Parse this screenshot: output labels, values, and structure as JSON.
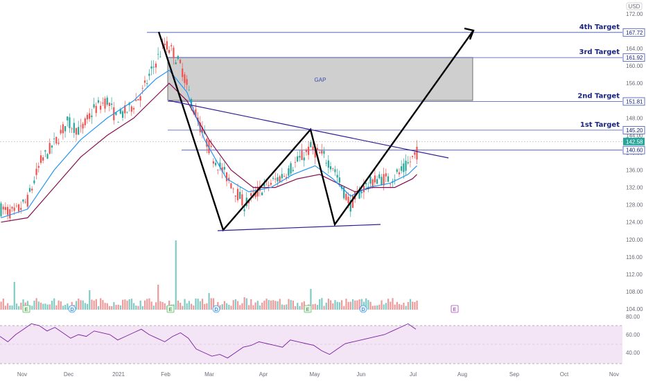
{
  "chart_data": {
    "type": "candlestick",
    "currency": "USD",
    "price_axis": {
      "ticks": [
        172.0,
        168.0,
        164.0,
        160.0,
        156.0,
        152.0,
        148.0,
        144.0,
        140.0,
        136.0,
        132.0,
        128.0,
        124.0,
        120.0,
        116.0,
        112.0,
        108.0,
        104.0
      ],
      "ylim": [
        102,
        174
      ]
    },
    "rsi_axis": {
      "ticks": [
        80.0,
        60.0,
        40.0
      ],
      "ylim": [
        25,
        82
      ]
    },
    "x_labels": [
      "Nov",
      "Dec",
      "2021",
      "Feb",
      "Mar",
      "Apr",
      "May",
      "Jun",
      "Jul",
      "Aug",
      "Sep",
      "Oct",
      "Nov"
    ],
    "price_levels": [
      {
        "value": 167.72,
        "label": "167.72",
        "target": "4th Target"
      },
      {
        "value": 161.92,
        "label": "161.92",
        "target": "3rd Target"
      },
      {
        "value": 151.81,
        "label": "151.81",
        "target": "2nd Target"
      },
      {
        "value": 145.2,
        "label": "145.20",
        "target": "1st Target"
      },
      {
        "value": 140.6,
        "label": "140.60",
        "target": ""
      }
    ],
    "current_price": {
      "value": 142.58,
      "label": "142.58",
      "color": "#26a69a"
    },
    "gap_zone": {
      "label": "GAP",
      "from": 151.81,
      "to": 161.92
    },
    "close_path": [
      [
        0,
        127
      ],
      [
        6,
        126
      ],
      [
        12,
        129
      ],
      [
        18,
        138
      ],
      [
        24,
        142
      ],
      [
        30,
        147
      ],
      [
        36,
        145
      ],
      [
        42,
        150
      ],
      [
        48,
        152
      ],
      [
        52,
        148
      ],
      [
        58,
        150
      ],
      [
        64,
        154
      ],
      [
        70,
        161
      ],
      [
        74,
        165
      ],
      [
        78,
        163
      ],
      [
        82,
        159
      ],
      [
        86,
        152
      ],
      [
        90,
        146
      ],
      [
        96,
        139
      ],
      [
        104,
        133
      ],
      [
        110,
        128
      ],
      [
        116,
        131
      ],
      [
        122,
        133
      ],
      [
        128,
        135
      ],
      [
        134,
        138
      ],
      [
        140,
        141
      ],
      [
        146,
        139
      ],
      [
        150,
        137
      ],
      [
        154,
        132
      ],
      [
        158,
        128
      ],
      [
        164,
        132
      ],
      [
        170,
        134
      ],
      [
        176,
        134
      ],
      [
        182,
        136
      ],
      [
        188,
        140
      ]
    ],
    "ema_fast": [
      [
        0,
        125
      ],
      [
        12,
        127
      ],
      [
        24,
        136
      ],
      [
        36,
        143
      ],
      [
        48,
        148
      ],
      [
        60,
        152
      ],
      [
        70,
        157
      ],
      [
        76,
        159
      ],
      [
        84,
        154
      ],
      [
        92,
        143
      ],
      [
        102,
        134
      ],
      [
        112,
        131
      ],
      [
        122,
        132
      ],
      [
        132,
        135
      ],
      [
        142,
        137
      ],
      [
        150,
        134
      ],
      [
        158,
        130
      ],
      [
        166,
        132
      ],
      [
        176,
        133
      ],
      [
        184,
        135
      ],
      [
        188,
        137
      ]
    ],
    "ema_slow": [
      [
        0,
        124
      ],
      [
        12,
        125
      ],
      [
        24,
        132
      ],
      [
        36,
        139
      ],
      [
        48,
        144
      ],
      [
        60,
        148
      ],
      [
        70,
        153
      ],
      [
        76,
        156
      ],
      [
        84,
        152
      ],
      [
        94,
        143
      ],
      [
        104,
        136
      ],
      [
        114,
        132
      ],
      [
        124,
        132
      ],
      [
        134,
        134
      ],
      [
        144,
        135
      ],
      [
        152,
        133
      ],
      [
        160,
        131
      ],
      [
        168,
        132
      ],
      [
        178,
        132
      ],
      [
        186,
        134
      ],
      [
        188,
        135
      ]
    ],
    "volume_events": [
      {
        "label": "E",
        "kind": "earnings"
      },
      {
        "label": "D",
        "kind": "dividend"
      },
      {
        "label": "E",
        "kind": "earnings"
      },
      {
        "label": "D",
        "kind": "dividend"
      },
      {
        "label": "E",
        "kind": "earnings"
      },
      {
        "label": "D",
        "kind": "dividend"
      },
      {
        "label": "E",
        "kind": "earnings-upcoming"
      }
    ],
    "rsi_values": [
      58,
      52,
      60,
      66,
      72,
      70,
      64,
      68,
      62,
      56,
      60,
      58,
      64,
      62,
      60,
      54,
      58,
      62,
      66,
      60,
      56,
      52,
      58,
      62,
      56,
      44,
      40,
      36,
      38,
      34,
      40,
      46,
      48,
      52,
      50,
      48,
      46,
      54,
      52,
      50,
      48,
      42,
      38,
      44,
      50,
      52,
      54,
      56,
      58,
      60,
      64,
      68,
      72,
      66
    ],
    "colors": {
      "up": "#26a69a",
      "down": "#ef5350",
      "ema_fast": "#2196f3",
      "ema_slow": "#880e4f",
      "level_line": "#3f51b5",
      "pattern": "#000000",
      "trendline": "#311b92",
      "rsi": "#7b1fa2"
    }
  }
}
